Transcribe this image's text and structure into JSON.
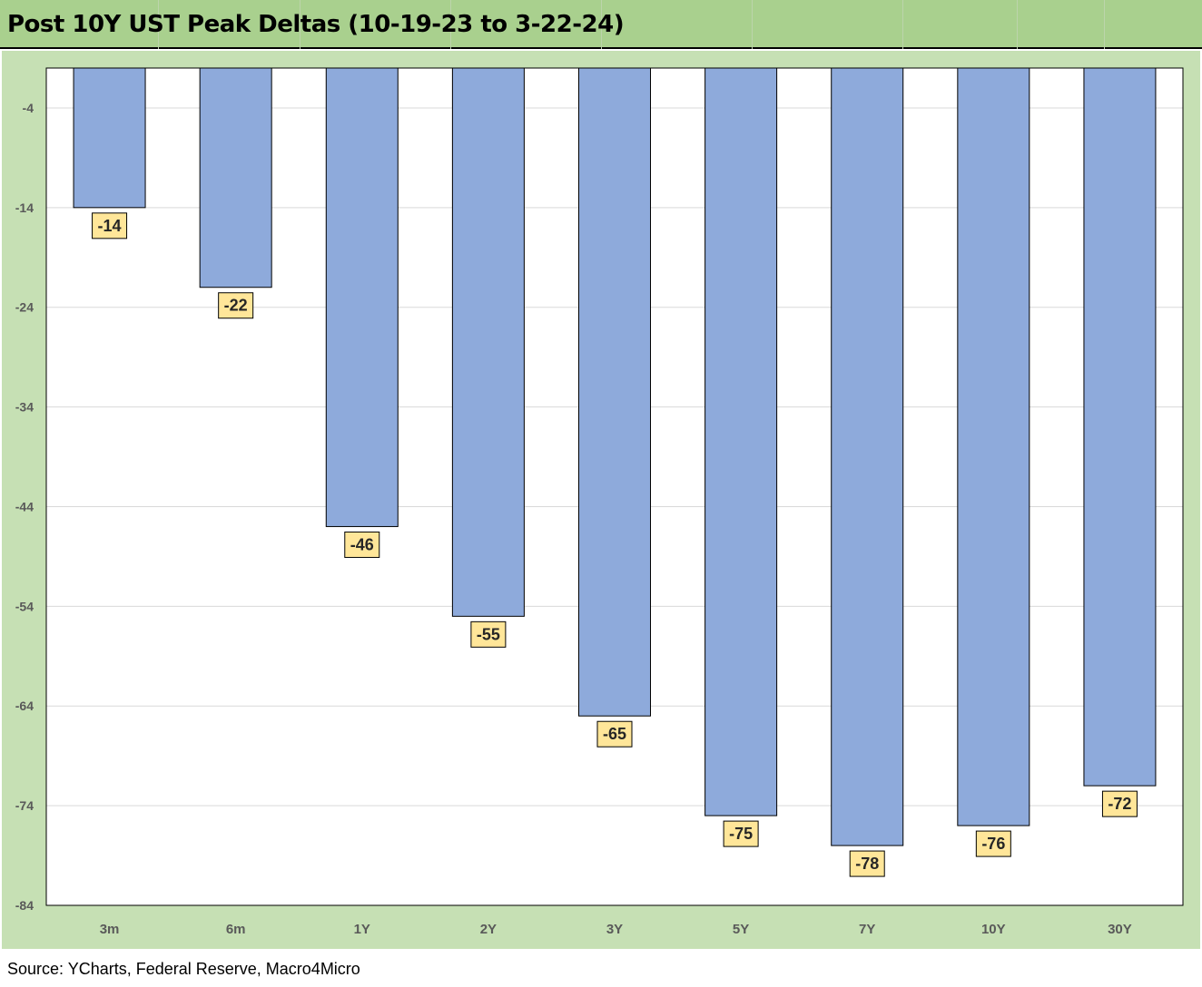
{
  "title": "Post 10Y UST Peak Deltas (10-19-23 to 3-22-24)",
  "source": "Source: YCharts, Federal Reserve, Macro4Micro",
  "colors": {
    "title_bg": "#a9d08e",
    "chart_bg": "#c6e0b4",
    "plot_bg": "#ffffff",
    "bar_fill": "#8eaadb",
    "label_bg": "#ffe699"
  },
  "chart_data": {
    "type": "bar",
    "title": "Post 10Y UST Peak Deltas (10-19-23 to 3-22-24)",
    "categories": [
      "3m",
      "6m",
      "1Y",
      "2Y",
      "3Y",
      "5Y",
      "7Y",
      "10Y",
      "30Y"
    ],
    "values": [
      -14,
      -22,
      -46,
      -55,
      -65,
      -75,
      -78,
      -76,
      -72
    ],
    "data_labels": [
      "-14",
      "-22",
      "-46",
      "-55",
      "-65",
      "-75",
      "-78",
      "-76",
      "-72"
    ],
    "yticks": [
      "-4",
      "-14",
      "-24",
      "-34",
      "-44",
      "-54",
      "-64",
      "-74",
      "-84"
    ],
    "ytick_values": [
      -4,
      -14,
      -24,
      -34,
      -44,
      -54,
      -64,
      -74,
      -84
    ],
    "ylim": [
      -84,
      0
    ],
    "xlabel": "",
    "ylabel": "",
    "grid": true
  }
}
